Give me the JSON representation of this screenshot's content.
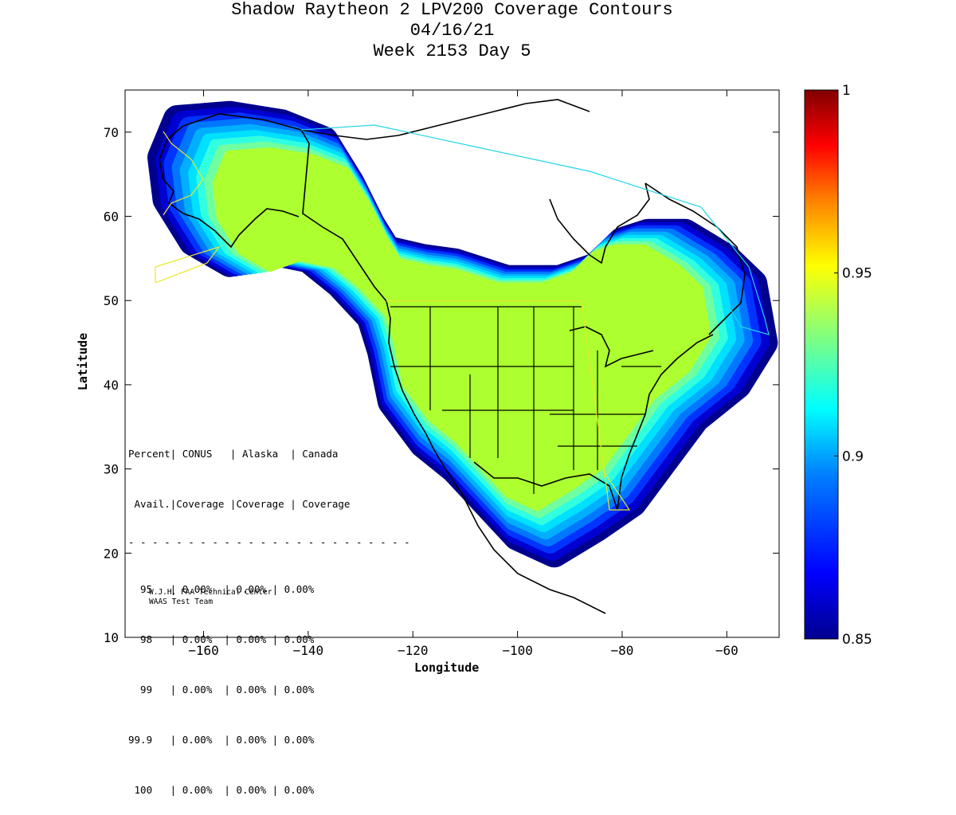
{
  "title": {
    "line1": "Shadow Raytheon 2 LPV200 Coverage Contours",
    "line2": "04/16/21",
    "line3": "Week 2153 Day 5"
  },
  "axes": {
    "xlabel": "Longitude",
    "ylabel": "Latitude",
    "xlim": [
      -175,
      -50
    ],
    "ylim": [
      10,
      75
    ],
    "xticks": [
      -160,
      -140,
      -120,
      -100,
      -80,
      -60
    ],
    "yticks": [
      10,
      20,
      30,
      40,
      50,
      60,
      70
    ]
  },
  "colorbar": {
    "min": 0.85,
    "max": 1,
    "ticks": [
      {
        "value": 1,
        "label": "1"
      },
      {
        "value": 0.95,
        "label": "0.95"
      },
      {
        "value": 0.9,
        "label": "0.9"
      },
      {
        "value": 0.85,
        "label": "0.85"
      }
    ]
  },
  "coverage_table": {
    "header1": "Percent| CONUS   | Alaska  | Canada",
    "header2": " Avail.|Coverage |Coverage | Coverage",
    "separator": "- - - - - - - - - - - - - - - - - - - - - - - -",
    "rows": [
      "  95   | 0.00%  | 0.00% | 0.00%",
      "  98   | 0.00%  | 0.00% | 0.00%",
      "  99   | 0.00%  | 0.00% | 0.00%",
      "99.9   | 0.00%  | 0.00% | 0.00%",
      " 100   | 0.00%  | 0.00% | 0.00%"
    ]
  },
  "credits": {
    "line1": "W.J.H. FAA Technical Center",
    "line2": "WAAS Test Team"
  },
  "colors": {
    "core": "#adff2f",
    "outline": "#000000",
    "alaska_boundary": "#e8e82a",
    "canada_boundary": "#23d6e6"
  },
  "chart_data": {
    "type": "heatmap",
    "title": "Shadow Raytheon 2 LPV200 Coverage Contours",
    "xlabel": "Longitude",
    "ylabel": "Latitude",
    "xlim": [
      -175,
      -50
    ],
    "ylim": [
      10,
      75
    ],
    "colorbar_range": [
      0.85,
      1
    ],
    "coverage_core_value": 0.935,
    "coverage_edge_value": 0.85,
    "coverage_region_outline": [
      [
        -165,
        71.5
      ],
      [
        -155,
        72
      ],
      [
        -145,
        71
      ],
      [
        -137,
        69
      ],
      [
        -132,
        64
      ],
      [
        -128,
        59
      ],
      [
        -125,
        56
      ],
      [
        -118,
        55
      ],
      [
        -112,
        54.5
      ],
      [
        -102,
        52.5
      ],
      [
        -92,
        52.5
      ],
      [
        -85,
        54
      ],
      [
        -80,
        57
      ],
      [
        -75,
        58
      ],
      [
        -68,
        58
      ],
      [
        -60,
        55
      ],
      [
        -55,
        52
      ],
      [
        -53,
        45
      ],
      [
        -58,
        40
      ],
      [
        -66,
        36
      ],
      [
        -72,
        31
      ],
      [
        -78,
        26
      ],
      [
        -85,
        23
      ],
      [
        -93,
        20
      ],
      [
        -100,
        22
      ],
      [
        -106,
        26
      ],
      [
        -112,
        30
      ],
      [
        -118,
        33
      ],
      [
        -124,
        38
      ],
      [
        -126,
        44
      ],
      [
        -128,
        48
      ],
      [
        -134,
        52
      ],
      [
        -140,
        55
      ],
      [
        -148,
        56
      ],
      [
        -155,
        54.5
      ],
      [
        -162,
        57
      ],
      [
        -167,
        62
      ],
      [
        -168,
        67
      ]
    ]
  }
}
